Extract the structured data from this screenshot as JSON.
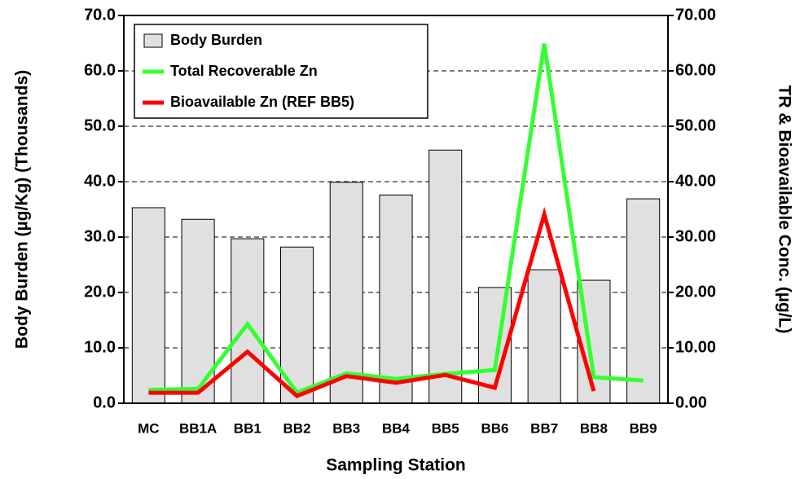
{
  "chart_data": {
    "type": "bar",
    "xlabel": "Sampling Station",
    "ylabel": "Body Burden (µg/Kg) (Thousands)",
    "y2label": "TR & Bioavailable Conc. (µg/L)",
    "categories": [
      "MC",
      "BB1A",
      "BB1",
      "BB2",
      "BB3",
      "BB4",
      "BB5",
      "BB6",
      "BB7",
      "BB8",
      "BB9"
    ],
    "series": [
      {
        "name": "Body Burden",
        "type": "bar",
        "color": "#e0e0e0",
        "values": [
          35.3,
          33.2,
          29.7,
          28.2,
          39.9,
          37.6,
          45.7,
          20.9,
          24.1,
          22.2,
          36.9
        ]
      },
      {
        "name": "Total Recoverable Zn",
        "type": "line",
        "color": "#33ff33",
        "axis": "y2",
        "values": [
          2.4,
          2.6,
          14.3,
          1.9,
          5.4,
          4.4,
          5.3,
          6.0,
          64.9,
          4.7,
          4.1
        ]
      },
      {
        "name": "Bioavailable Zn (REF BB5)",
        "type": "line",
        "color": "#ff0000",
        "axis": "y2",
        "values": [
          1.9,
          1.9,
          9.3,
          1.3,
          4.9,
          3.7,
          5.1,
          2.8,
          34.1,
          2.2,
          null
        ]
      }
    ],
    "ylim": [
      0,
      70
    ],
    "yticks": [
      {
        "value": 0,
        "label": "0.0"
      },
      {
        "value": 10,
        "label": "10.0"
      },
      {
        "value": 20,
        "label": "20.0"
      },
      {
        "value": 30,
        "label": "30.0"
      },
      {
        "value": 40,
        "label": "40.0"
      },
      {
        "value": 50,
        "label": "50.0"
      },
      {
        "value": 60,
        "label": "60.0"
      },
      {
        "value": 70,
        "label": "70.0"
      }
    ],
    "y2lim": [
      0,
      70
    ],
    "y2ticks": [
      {
        "value": 0,
        "label": "0.00"
      },
      {
        "value": 10,
        "label": "10.00"
      },
      {
        "value": 20,
        "label": "20.00"
      },
      {
        "value": 30,
        "label": "30.00"
      },
      {
        "value": 40,
        "label": "40.00"
      },
      {
        "value": 50,
        "label": "50.00"
      },
      {
        "value": 60,
        "label": "60.00"
      },
      {
        "value": 70,
        "label": "70.00"
      }
    ],
    "grid": true,
    "legend": "upper left"
  }
}
